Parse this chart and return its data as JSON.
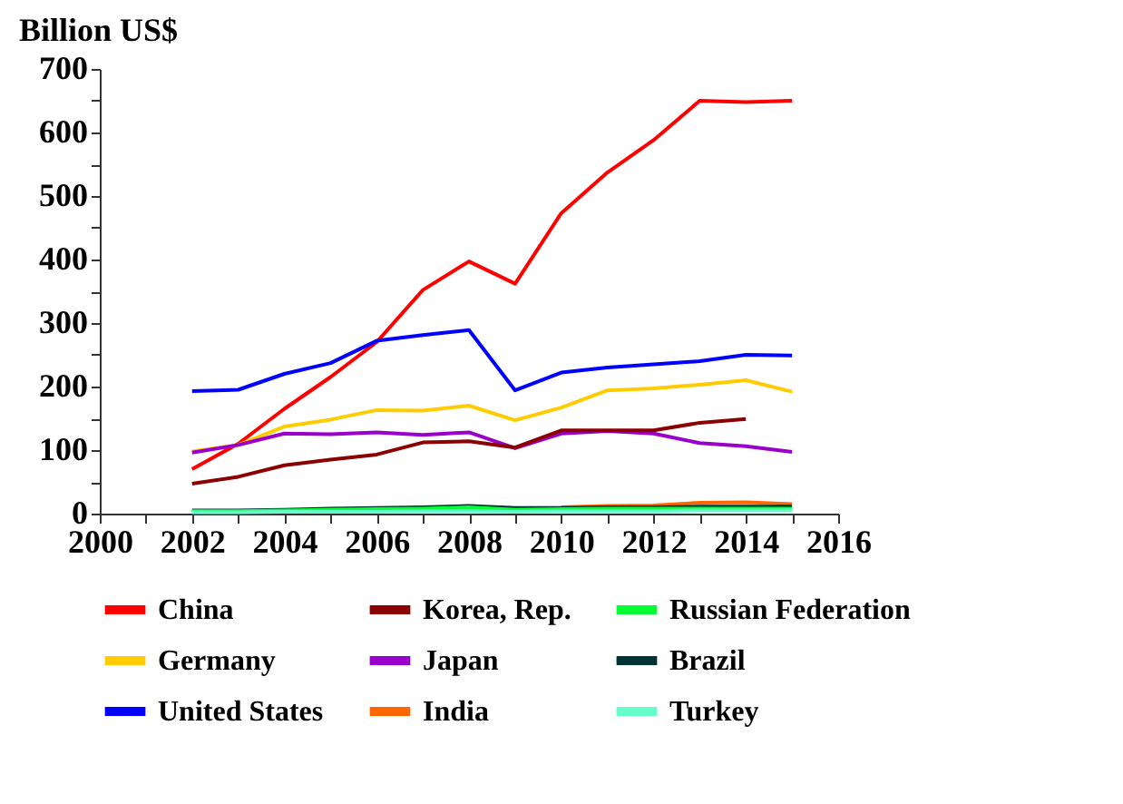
{
  "chart_data": {
    "type": "line",
    "ylabel": "Billion US$",
    "x": [
      2002,
      2003,
      2004,
      2005,
      2006,
      2007,
      2008,
      2009,
      2010,
      2011,
      2012,
      2013,
      2014,
      2015
    ],
    "xlim": [
      2000,
      2016
    ],
    "xticks": [
      2000,
      {
        "value": 2001,
        "label": null
      },
      2002,
      {
        "value": 2003,
        "label": null
      },
      2004,
      {
        "value": 2005,
        "label": null
      },
      2006,
      {
        "value": 2007,
        "label": null
      },
      2008,
      {
        "value": 2009,
        "label": null
      },
      2010,
      {
        "value": 2011,
        "label": null
      },
      2012,
      {
        "value": 2013,
        "label": null
      },
      2014,
      {
        "value": 2015,
        "label": null
      },
      2016
    ],
    "ylim": [
      0,
      700
    ],
    "yticks": [
      0,
      {
        "value": 50,
        "label": null
      },
      100,
      {
        "value": 150,
        "label": null
      },
      200,
      {
        "value": 250,
        "label": null
      },
      300,
      {
        "value": 350,
        "label": null
      },
      400,
      {
        "value": 450,
        "label": null
      },
      500,
      {
        "value": 550,
        "label": null
      },
      600,
      {
        "value": 650,
        "label": null
      },
      700
    ],
    "grid": false,
    "legend": "bottom",
    "marker": "none",
    "line_style": "solid",
    "series": [
      {
        "name": "China",
        "color": "#ff0000",
        "values": [
          70,
          110,
          165,
          215,
          270,
          352,
          397,
          362,
          473,
          537,
          588,
          650,
          648,
          650
        ]
      },
      {
        "name": "Korea, Rep.",
        "color": "#8b0000",
        "values": [
          47,
          58,
          76,
          85,
          93,
          112,
          114,
          104,
          131,
          131,
          131,
          143,
          149,
          null
        ]
      },
      {
        "name": "Russian Federation",
        "color": "#00ff33",
        "values": [
          4,
          4,
          5,
          6,
          7,
          8,
          10,
          6,
          7,
          8,
          8,
          8,
          8,
          8
        ]
      },
      {
        "name": "Germany",
        "color": "#ffcc00",
        "values": [
          98,
          108,
          137,
          148,
          163,
          162,
          170,
          147,
          167,
          194,
          197,
          203,
          210,
          192
        ]
      },
      {
        "name": "Japan",
        "color": "#9900cc",
        "values": [
          96,
          108,
          126,
          125,
          128,
          124,
          128,
          103,
          126,
          130,
          126,
          111,
          106,
          97
        ]
      },
      {
        "name": "Brazil",
        "color": "#003333",
        "values": [
          5,
          5,
          6,
          8,
          9,
          10,
          12,
          9,
          9,
          10,
          10,
          11,
          11,
          11
        ]
      },
      {
        "name": "United States",
        "color": "#0000ff",
        "values": [
          193,
          195,
          220,
          237,
          272,
          281,
          289,
          194,
          222,
          230,
          235,
          240,
          250,
          249
        ]
      },
      {
        "name": "India",
        "color": "#ff6600",
        "values": [
          null,
          null,
          null,
          null,
          null,
          null,
          null,
          null,
          10,
          12,
          13,
          17,
          18,
          15
        ]
      },
      {
        "name": "Turkey",
        "color": "#66ffcc",
        "values": [
          2,
          2,
          3,
          3,
          3,
          4,
          4,
          3,
          4,
          4,
          4,
          5,
          5,
          5
        ]
      }
    ]
  }
}
